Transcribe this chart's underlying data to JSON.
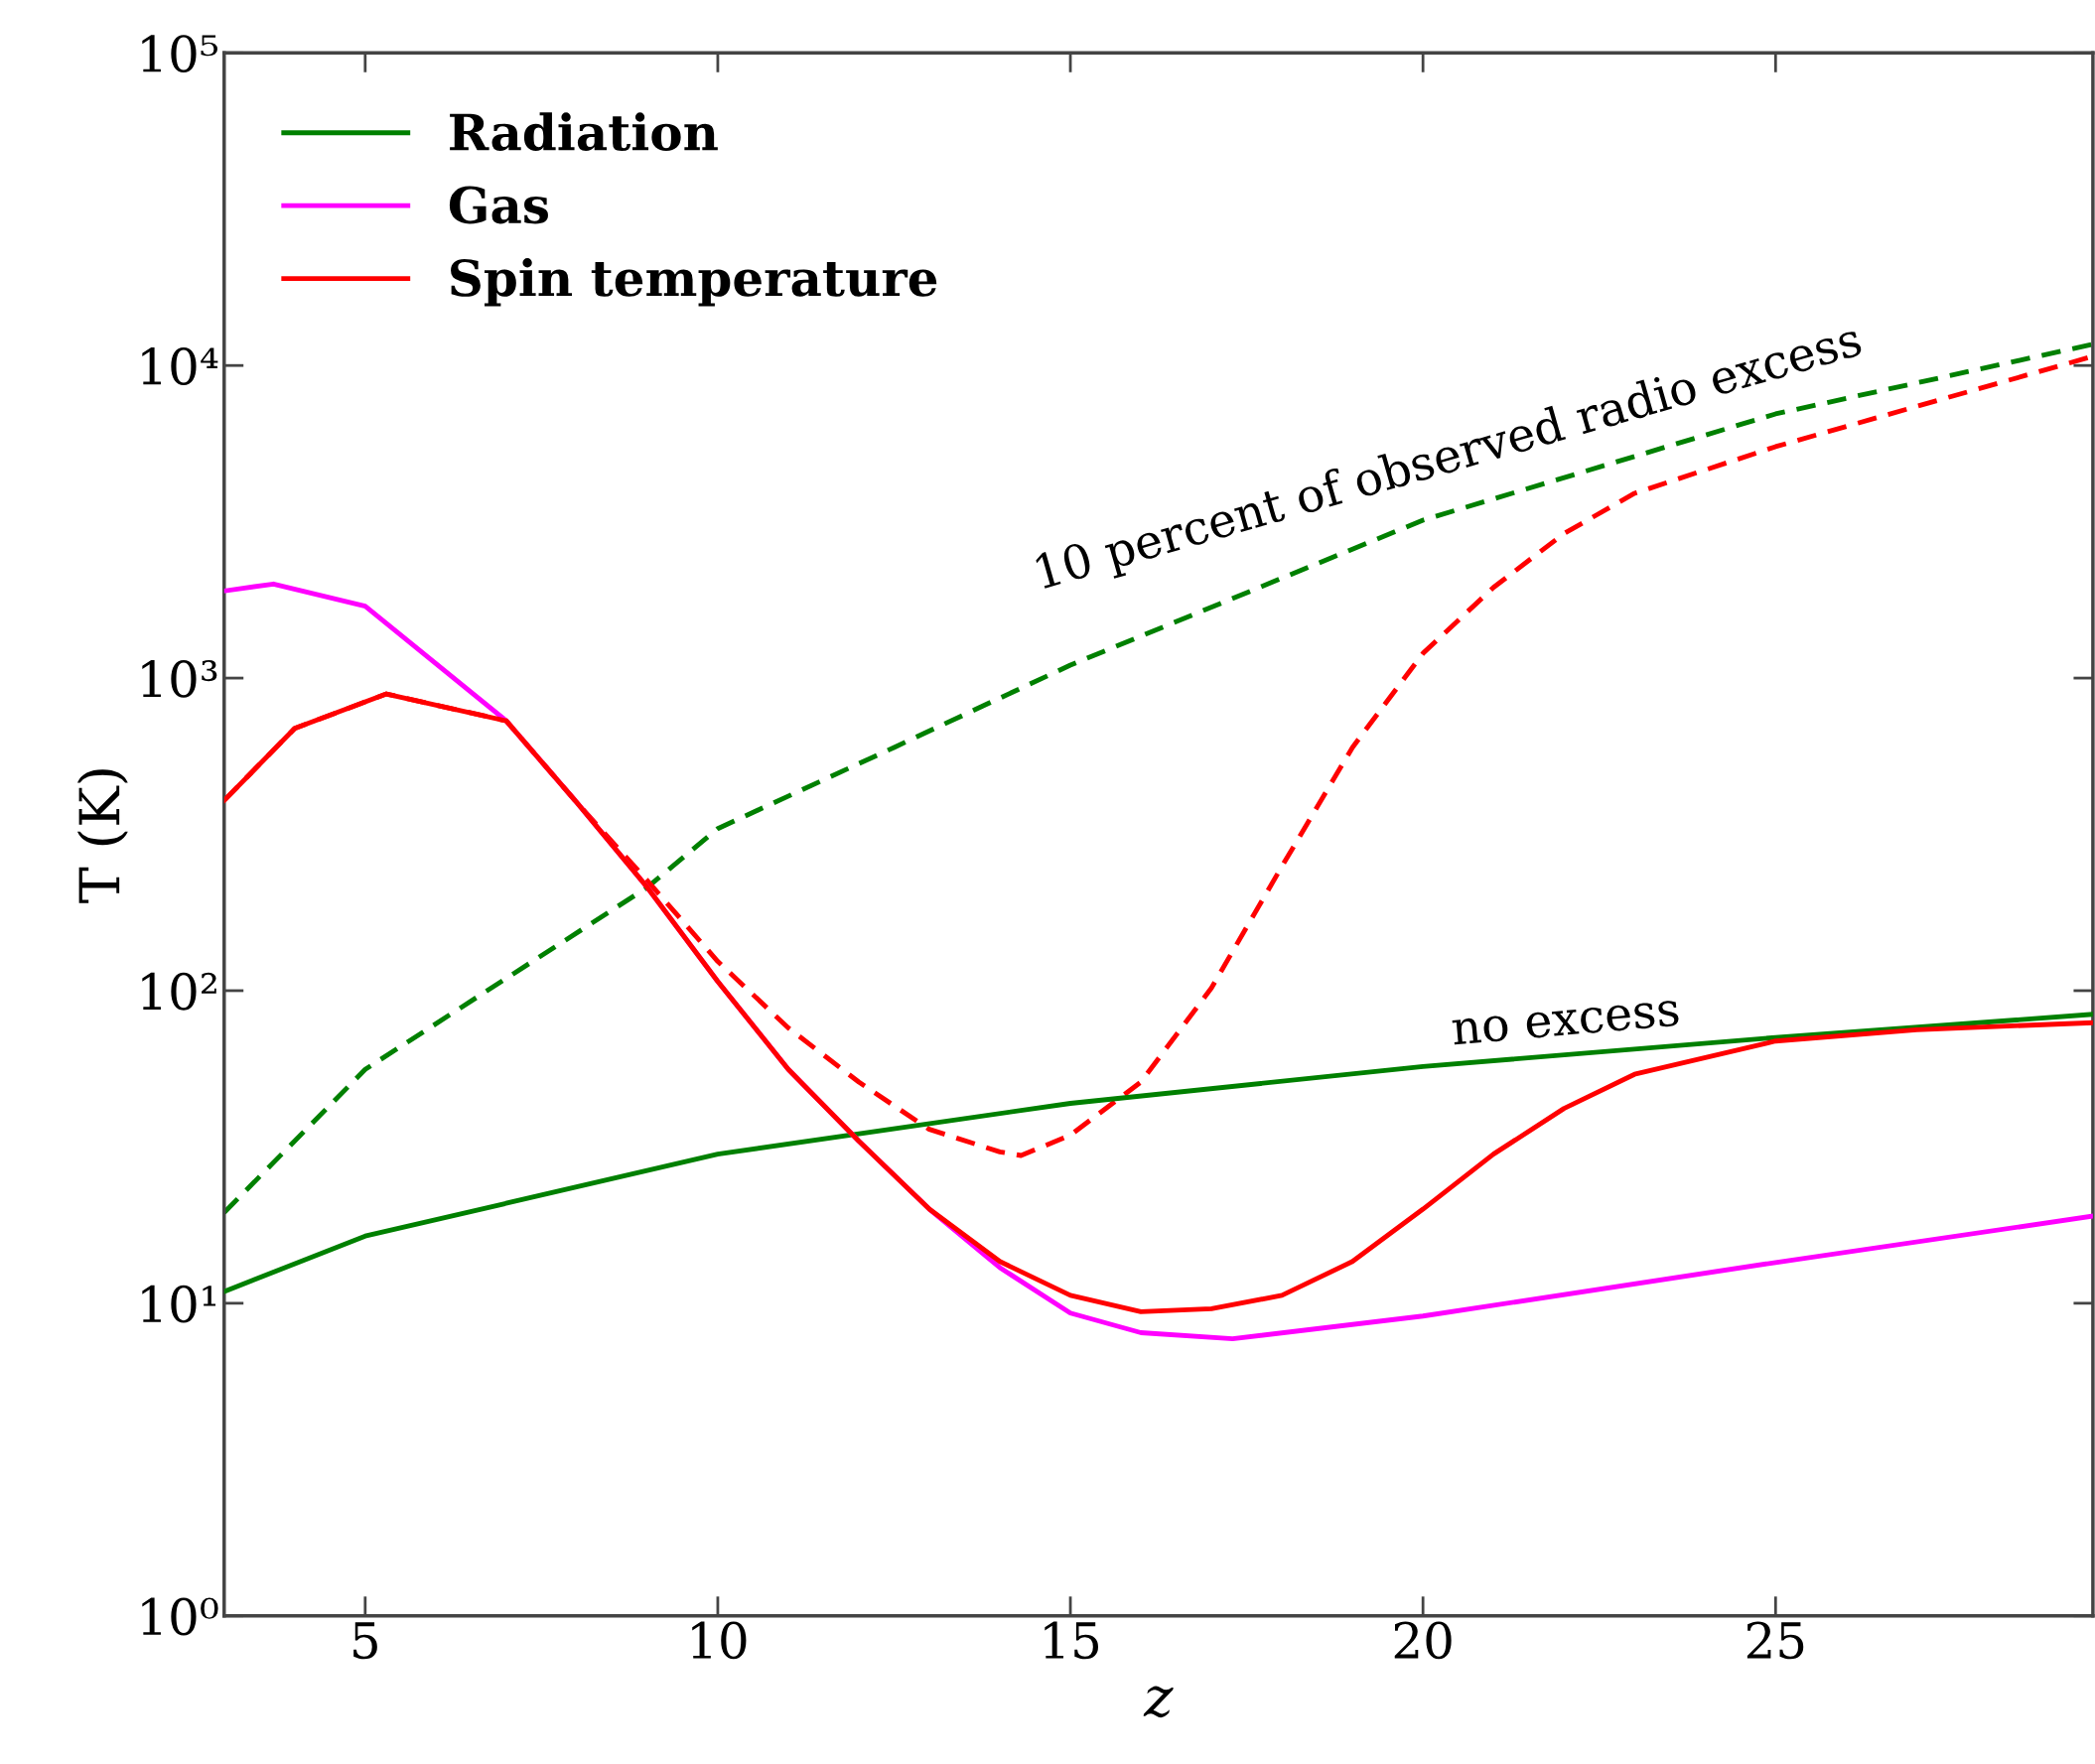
{
  "chart_data": {
    "type": "line",
    "xlabel": "z",
    "ylabel": "T (K)",
    "log": "y",
    "legend": "top left",
    "grid": false,
    "xlim": [
      3,
      29.5
    ],
    "xticks": [
      5,
      10,
      15,
      20,
      25
    ],
    "ylim": [
      1,
      100000
    ],
    "yticks": [
      {
        "value": 1,
        "label": "10⁰"
      },
      {
        "value": 10,
        "label": "10¹"
      },
      {
        "value": 100,
        "label": "10²"
      },
      {
        "value": 1000,
        "label": "10³"
      },
      {
        "value": 10000,
        "label": "10⁴"
      },
      {
        "value": 100000,
        "label": "10⁵"
      }
    ],
    "series": [
      {
        "name": "Radiation",
        "color": "#008000",
        "line_style": "solid",
        "x": [
          3,
          5,
          10,
          15,
          20,
          25,
          29.5
        ],
        "values": [
          10.9,
          16.4,
          30,
          43.6,
          57.2,
          70.8,
          84
        ]
      },
      {
        "name": "Gas",
        "color": "#ff00ff",
        "line_style": "solid",
        "x": [
          3,
          3.7,
          5,
          7,
          8,
          9,
          10,
          11,
          12,
          13,
          14,
          15,
          16,
          17.3,
          20,
          25,
          29.5
        ],
        "values": [
          1900,
          2000,
          1700,
          730,
          400,
          214,
          107,
          56,
          33,
          20,
          13,
          9.3,
          8.05,
          7.7,
          9.1,
          13.5,
          19
        ]
      },
      {
        "name": "Spin temperature",
        "color": "#ff0000",
        "line_style": "solid",
        "x": [
          3,
          4,
          5.3,
          7,
          8,
          9,
          10,
          11,
          12,
          13,
          14,
          15,
          16,
          17,
          18,
          19,
          20,
          21,
          22,
          23,
          25,
          27,
          29.5
        ],
        "values": [
          406,
          690,
          890,
          730,
          400,
          214,
          107,
          56,
          33,
          20,
          13.6,
          10.6,
          9.4,
          9.6,
          10.6,
          13.6,
          20,
          30,
          42,
          54,
          69,
          75,
          79
        ]
      },
      {
        "color": "#008000",
        "line_style": "dashed",
        "x": [
          3,
          5,
          9,
          10,
          12.5,
          15,
          20,
          25,
          29.5
        ],
        "values": [
          19.5,
          56,
          214,
          330,
          600,
          1100,
          3200,
          7000,
          11700
        ]
      },
      {
        "color": "#ff0000",
        "line_style": "dashed",
        "x": [
          3,
          4,
          5.3,
          7,
          8,
          9,
          10,
          11,
          12,
          13,
          14,
          14.3,
          15,
          16,
          17,
          18,
          19,
          20,
          21,
          22,
          23,
          25,
          27,
          29.5
        ],
        "values": [
          406,
          690,
          890,
          730,
          400,
          225,
          124,
          76,
          51,
          36,
          30.5,
          29.7,
          34.5,
          51,
          102,
          250,
          600,
          1200,
          1950,
          2900,
          3900,
          5500,
          7400,
          10700
        ]
      }
    ],
    "annotations": [
      "10 percent of observed radio excess",
      "no excess"
    ]
  }
}
